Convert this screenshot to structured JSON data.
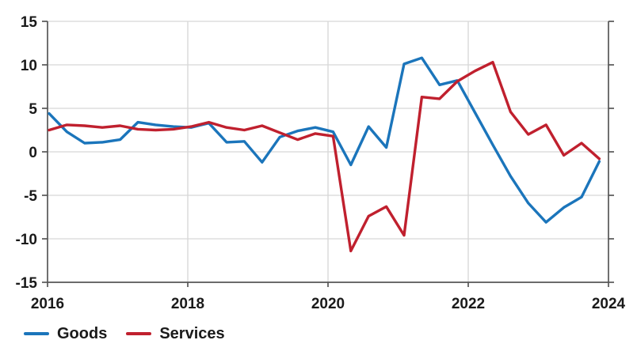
{
  "chart_data": {
    "type": "line",
    "title": "",
    "xlabel": "",
    "ylabel": "",
    "ylim": [
      -15,
      15
    ],
    "y_ticks": [
      15,
      10,
      5,
      0,
      -5,
      -10,
      -15
    ],
    "x_tick_labels": [
      "2016",
      "2018",
      "2020",
      "2022",
      "2024"
    ],
    "grid": true,
    "legend_position": "bottom-left",
    "frequency": "quarterly",
    "x_periods": [
      "2016 Q1",
      "2016 Q2",
      "2016 Q3",
      "2016 Q4",
      "2017 Q1",
      "2017 Q2",
      "2017 Q3",
      "2017 Q4",
      "2018 Q1",
      "2018 Q2",
      "2018 Q3",
      "2018 Q4",
      "2019 Q1",
      "2019 Q2",
      "2019 Q3",
      "2019 Q4",
      "2020 Q1",
      "2020 Q2",
      "2020 Q3",
      "2020 Q4",
      "2021 Q1",
      "2021 Q2",
      "2021 Q3",
      "2021 Q4",
      "2022 Q1",
      "2022 Q2",
      "2022 Q3",
      "2022 Q4",
      "2023 Q1",
      "2023 Q2",
      "2023 Q3",
      "2023 Q4"
    ],
    "series": [
      {
        "name": "Goods",
        "color": "#1b75bb",
        "values": [
          4.4,
          2.3,
          1.0,
          1.1,
          1.4,
          3.4,
          3.1,
          2.9,
          2.8,
          3.3,
          1.1,
          1.2,
          -1.2,
          1.7,
          2.4,
          2.8,
          2.3,
          -1.5,
          2.9,
          0.5,
          10.1,
          10.8,
          7.7,
          8.2,
          4.5,
          0.8,
          -2.8,
          -5.9,
          -8.1,
          -6.4,
          -5.2,
          -1.1
        ]
      },
      {
        "name": "Services",
        "color": "#c0202e",
        "values": [
          2.5,
          3.1,
          3.0,
          2.8,
          3.0,
          2.6,
          2.5,
          2.6,
          2.9,
          3.4,
          2.8,
          2.5,
          3.0,
          2.2,
          1.4,
          2.1,
          1.8,
          -11.4,
          -7.4,
          -6.3,
          -9.6,
          6.3,
          6.1,
          8.1,
          9.3,
          10.3,
          4.6,
          2.0,
          3.1,
          -0.4,
          1.0,
          -0.8
        ]
      }
    ],
    "colors": {
      "grid_line": "#d6d6d6",
      "axis_frame": "#565656",
      "tick_text": "#1a1a1a",
      "background": "#ffffff"
    }
  }
}
